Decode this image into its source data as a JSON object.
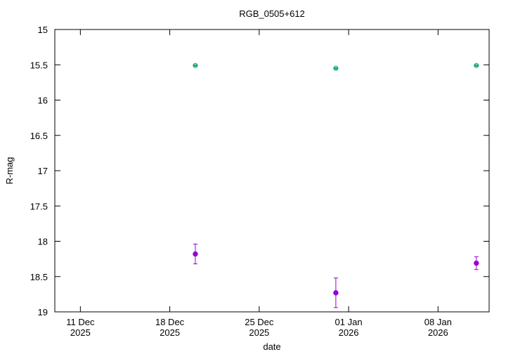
{
  "chart_data": {
    "type": "scatter",
    "title": "RGB_0505+612",
    "x_label": "date",
    "y_label": "R-mag",
    "xlim": [
      "2025-12-09",
      "2026-01-12"
    ],
    "xticks": [
      {
        "value": "2025-12-11",
        "label": "11 Dec\n2025"
      },
      {
        "value": "2025-12-18",
        "label": "18 Dec\n2025"
      },
      {
        "value": "2025-12-25",
        "label": "25 Dec\n2025"
      },
      {
        "value": "2026-01-01",
        "label": "01 Jan\n2026"
      },
      {
        "value": "2026-01-08",
        "label": "08 Jan\n2026"
      }
    ],
    "ylim": [
      19,
      15
    ],
    "yticks": [
      15,
      15.5,
      16,
      16.5,
      17,
      17.5,
      18,
      18.5,
      19
    ],
    "series": [
      {
        "color": "#009e73",
        "marker": "open",
        "x": [
          "2025-12-20",
          "2025-12-31",
          "2026-01-11"
        ],
        "values": [
          15.51,
          15.55,
          15.51
        ],
        "errors": [
          0.01,
          0.01,
          0.01
        ]
      },
      {
        "color": "#9400d3",
        "marker": "filled",
        "x": [
          "2025-12-20",
          "2025-12-31",
          "2026-01-11"
        ],
        "values": [
          18.18,
          18.73,
          18.31
        ],
        "errors": [
          0.14,
          0.21,
          0.09
        ]
      }
    ]
  }
}
